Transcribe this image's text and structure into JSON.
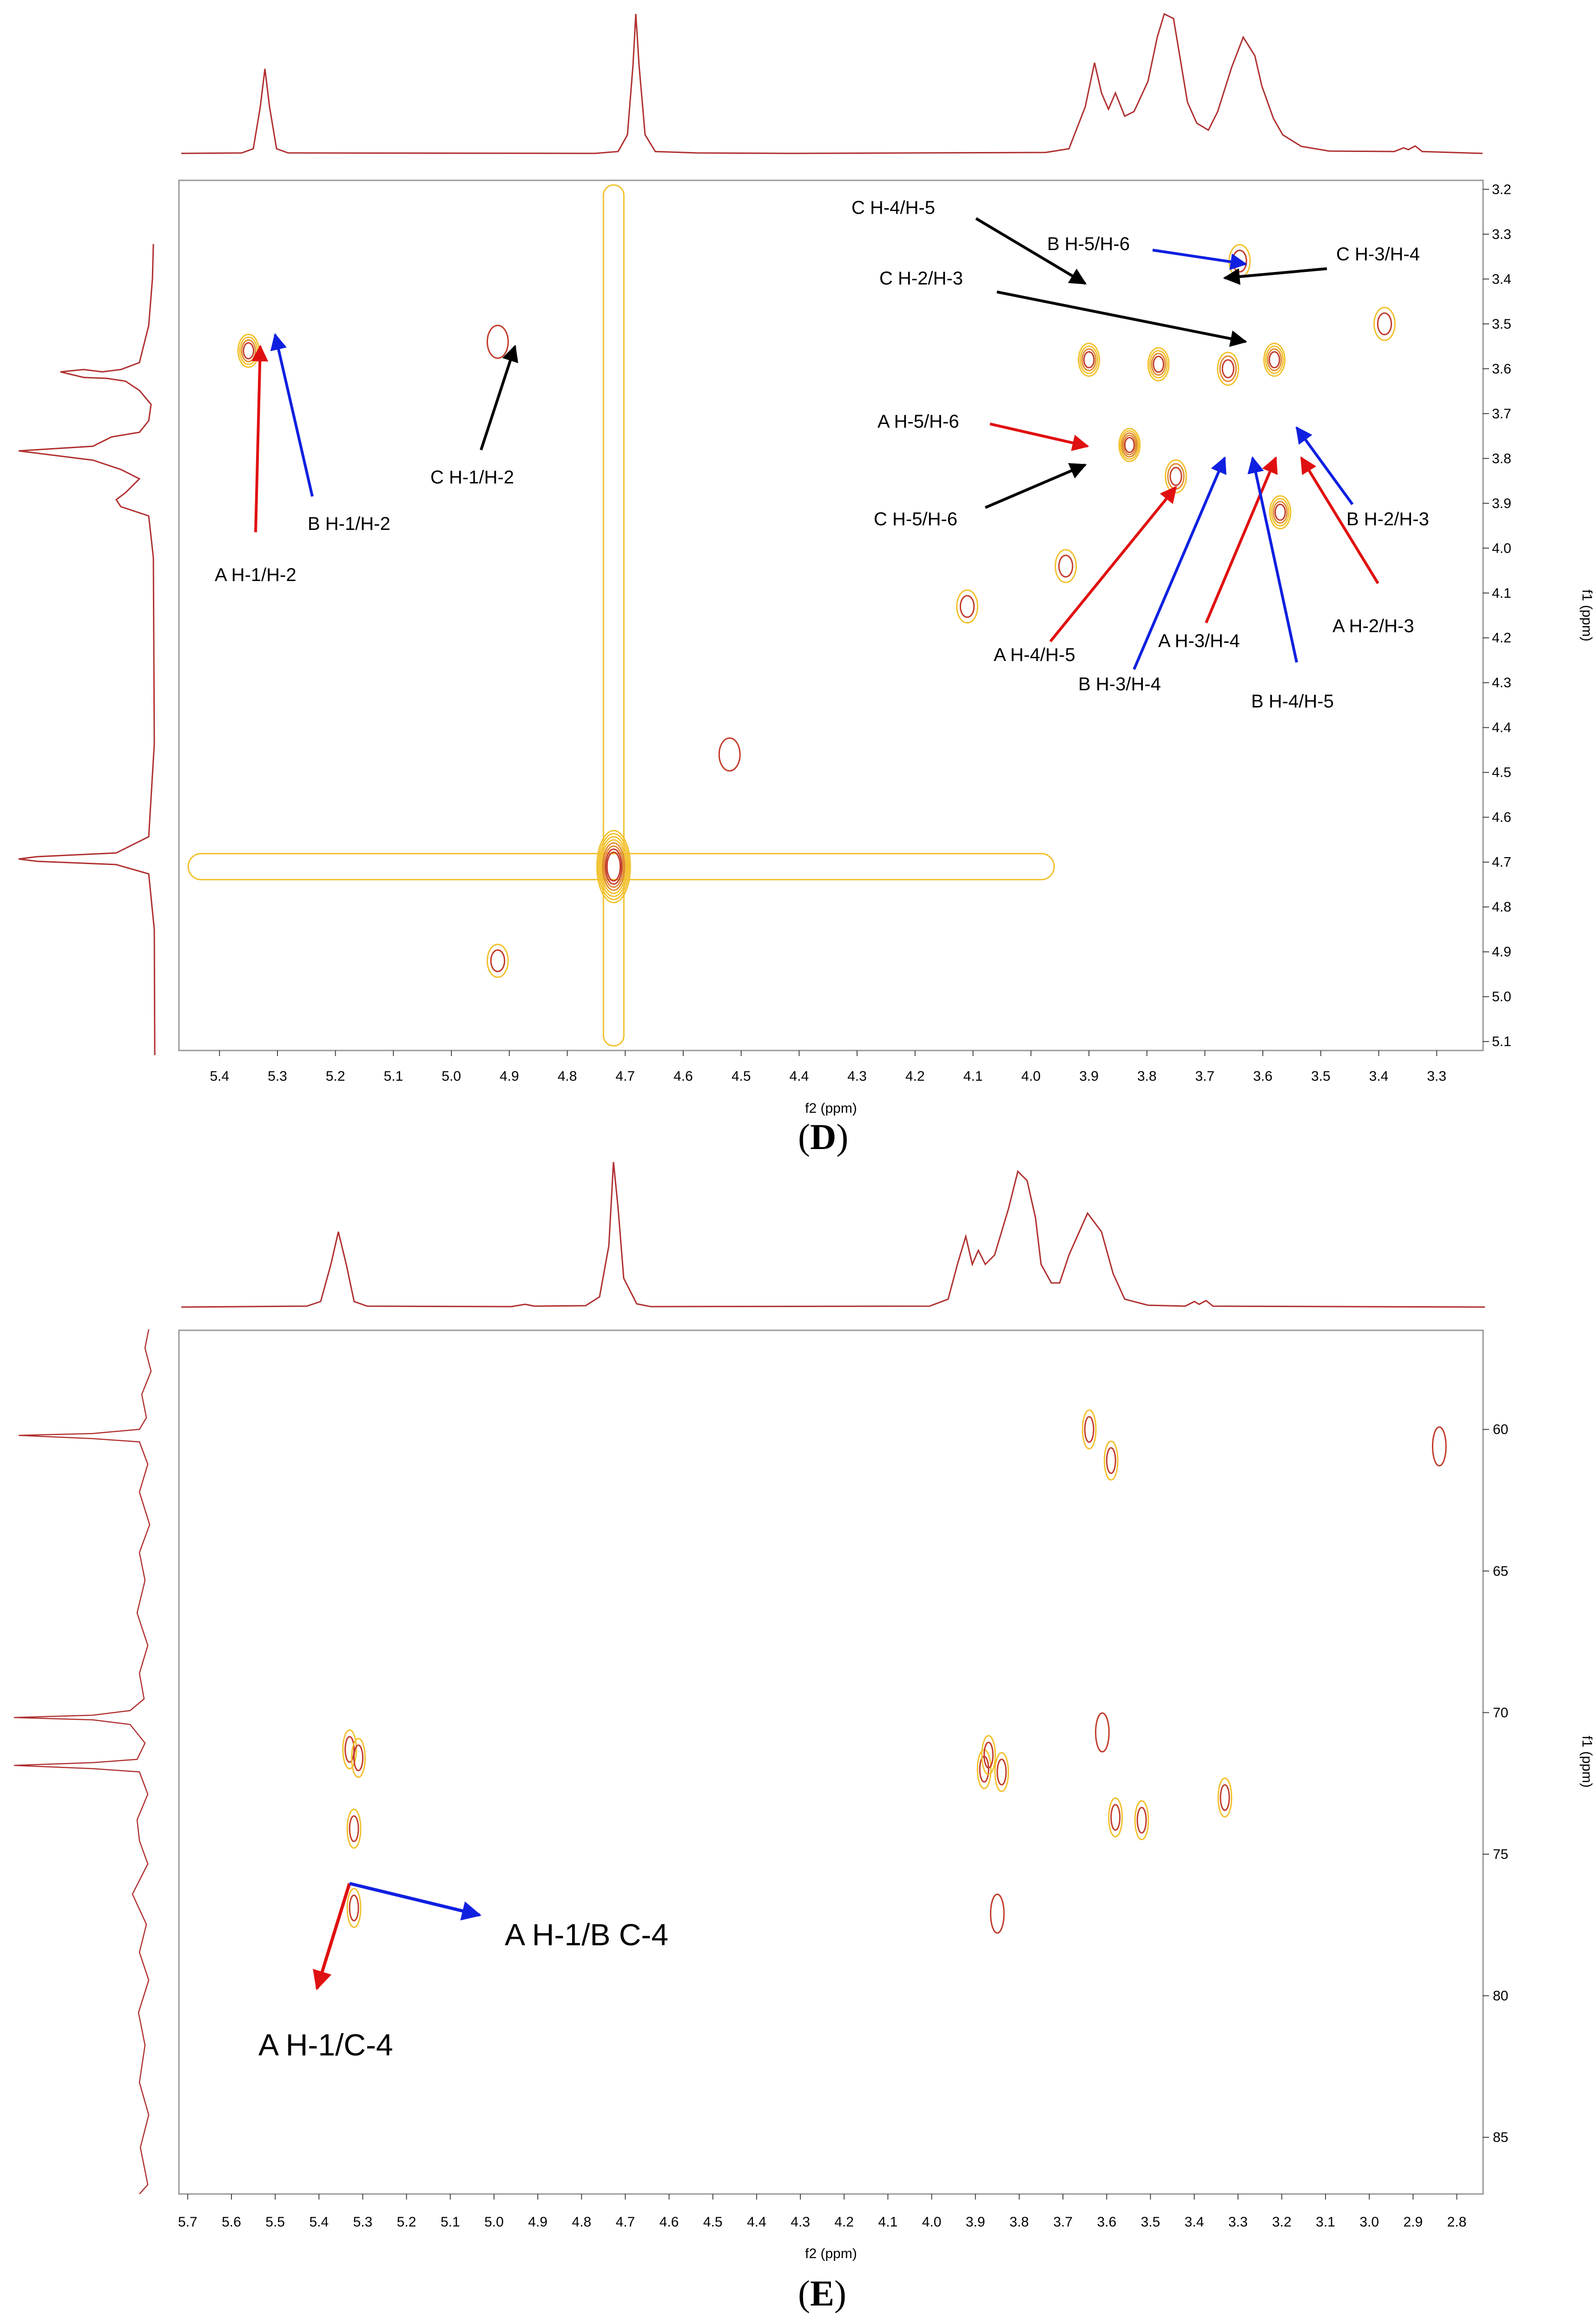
{
  "chart_data": [
    {
      "id": "D",
      "type": "contour",
      "title": "",
      "panel_label": "(D)",
      "panel_letter": "D",
      "xlabel": "f2 (ppm)",
      "ylabel": "f1 (ppm)",
      "xlim": [
        5.47,
        3.22
      ],
      "ylim": [
        3.18,
        5.12
      ],
      "x_ticks": [
        "5.4",
        "5.3",
        "5.2",
        "5.1",
        "5.0",
        "4.9",
        "4.8",
        "4.7",
        "4.6",
        "4.5",
        "4.4",
        "4.3",
        "4.2",
        "4.1",
        "4.0",
        "3.9",
        "3.8",
        "3.7",
        "3.6",
        "3.5",
        "3.4",
        "3.3"
      ],
      "y_ticks": [
        "3.2",
        "3.3",
        "3.4",
        "3.5",
        "3.6",
        "3.7",
        "3.8",
        "3.9",
        "4.0",
        "4.1",
        "4.2",
        "4.3",
        "4.4",
        "4.5",
        "4.6",
        "4.7",
        "4.8",
        "4.9",
        "5.0",
        "5.1"
      ],
      "peaks": [
        {
          "x": 5.35,
          "y": 3.56,
          "strength": 4
        },
        {
          "x": 4.92,
          "y": 3.54,
          "strength": 1
        },
        {
          "x": 4.72,
          "y": 4.71,
          "strength": 8
        },
        {
          "x": 3.9,
          "y": 3.58,
          "strength": 4
        },
        {
          "x": 3.78,
          "y": 3.59,
          "strength": 4
        },
        {
          "x": 3.66,
          "y": 3.6,
          "strength": 3
        },
        {
          "x": 3.58,
          "y": 3.58,
          "strength": 4
        },
        {
          "x": 3.83,
          "y": 3.77,
          "strength": 5
        },
        {
          "x": 3.75,
          "y": 3.84,
          "strength": 3
        },
        {
          "x": 3.57,
          "y": 3.92,
          "strength": 4
        },
        {
          "x": 3.64,
          "y": 3.36,
          "strength": 2
        },
        {
          "x": 3.39,
          "y": 3.5,
          "strength": 2
        },
        {
          "x": 3.94,
          "y": 4.04,
          "strength": 2
        },
        {
          "x": 4.11,
          "y": 4.13,
          "strength": 2
        },
        {
          "x": 4.92,
          "y": 4.92,
          "strength": 2
        },
        {
          "x": 4.52,
          "y": 4.46,
          "strength": 1
        }
      ],
      "annotations": [
        {
          "text": "A H-1/H-2",
          "color": "#e01010",
          "x": 5.35,
          "y": 3.56
        },
        {
          "text": "B H-1/H-2",
          "color": "#1020e0",
          "x": 5.33,
          "y": 3.53
        },
        {
          "text": "C H-1/H-2",
          "color": "#000000",
          "x": 4.92,
          "y": 3.54
        },
        {
          "text": "C H-4/H-5",
          "color": "#000000",
          "x": 3.91,
          "y": 3.42
        },
        {
          "text": "B H-5/H-6",
          "color": "#1020e0",
          "x": 3.64,
          "y": 3.35
        },
        {
          "text": "C H-3/H-4",
          "color": "#000000",
          "x": 3.66,
          "y": 3.38
        },
        {
          "text": "C H-2/H-3",
          "color": "#000000",
          "x": 3.65,
          "y": 3.53
        },
        {
          "text": "A H-5/H-6",
          "color": "#e01010",
          "x": 3.9,
          "y": 3.77
        },
        {
          "text": "C H-5/H-6",
          "color": "#000000",
          "x": 3.91,
          "y": 3.81
        },
        {
          "text": "A H-4/H-5",
          "color": "#e01010",
          "x": 3.81,
          "y": 3.87
        },
        {
          "text": "B H-3/H-4",
          "color": "#1020e0",
          "x": 3.69,
          "y": 3.79
        },
        {
          "text": "A H-3/H-4",
          "color": "#e01010",
          "x": 3.59,
          "y": 3.79
        },
        {
          "text": "B H-4/H-5",
          "color": "#1020e0",
          "x": 3.63,
          "y": 3.79
        },
        {
          "text": "B H-2/H-3",
          "color": "#1020e0",
          "x": 3.56,
          "y": 3.72
        },
        {
          "text": "A H-2/H-3",
          "color": "#e01010",
          "x": 3.54,
          "y": 3.79
        }
      ]
    },
    {
      "id": "E",
      "type": "contour",
      "title": "",
      "panel_label": "(E)",
      "panel_letter": "E",
      "xlabel": "f2 (ppm)",
      "ylabel": "f1 (ppm)",
      "xlim": [
        5.72,
        2.74
      ],
      "ylim": [
        56.5,
        87.0
      ],
      "x_ticks": [
        "5.7",
        "5.6",
        "5.5",
        "5.4",
        "5.3",
        "5.2",
        "5.1",
        "5.0",
        "4.9",
        "4.8",
        "4.7",
        "4.6",
        "4.5",
        "4.4",
        "4.3",
        "4.2",
        "4.1",
        "4.0",
        "3.9",
        "3.8",
        "3.7",
        "3.6",
        "3.5",
        "3.4",
        "3.3",
        "3.2",
        "3.1",
        "3.0",
        "2.9",
        "2.8"
      ],
      "y_ticks": [
        "60",
        "65",
        "70",
        "75",
        "80",
        "85"
      ],
      "peaks": [
        {
          "x": 5.33,
          "y": 71.3,
          "strength": 2
        },
        {
          "x": 5.31,
          "y": 71.6,
          "strength": 2
        },
        {
          "x": 5.32,
          "y": 74.1,
          "strength": 2
        },
        {
          "x": 5.32,
          "y": 76.9,
          "strength": 2
        },
        {
          "x": 3.88,
          "y": 72.0,
          "strength": 2
        },
        {
          "x": 3.87,
          "y": 71.5,
          "strength": 2
        },
        {
          "x": 3.84,
          "y": 72.1,
          "strength": 2
        },
        {
          "x": 3.64,
          "y": 60.0,
          "strength": 2
        },
        {
          "x": 3.59,
          "y": 61.1,
          "strength": 2
        },
        {
          "x": 3.61,
          "y": 70.7,
          "strength": 1
        },
        {
          "x": 3.58,
          "y": 73.7,
          "strength": 2
        },
        {
          "x": 3.52,
          "y": 73.8,
          "strength": 2
        },
        {
          "x": 3.33,
          "y": 73.0,
          "strength": 2
        },
        {
          "x": 3.85,
          "y": 77.1,
          "strength": 1
        },
        {
          "x": 2.84,
          "y": 60.6,
          "strength": 1
        }
      ],
      "annotations": [
        {
          "text": "A H-1/C-4",
          "color": "#e01010",
          "x": 5.32,
          "y": 76.9
        },
        {
          "text": "A H-1/B C-4",
          "color": "#1020e0",
          "x": 5.32,
          "y": 76.9
        }
      ]
    }
  ]
}
